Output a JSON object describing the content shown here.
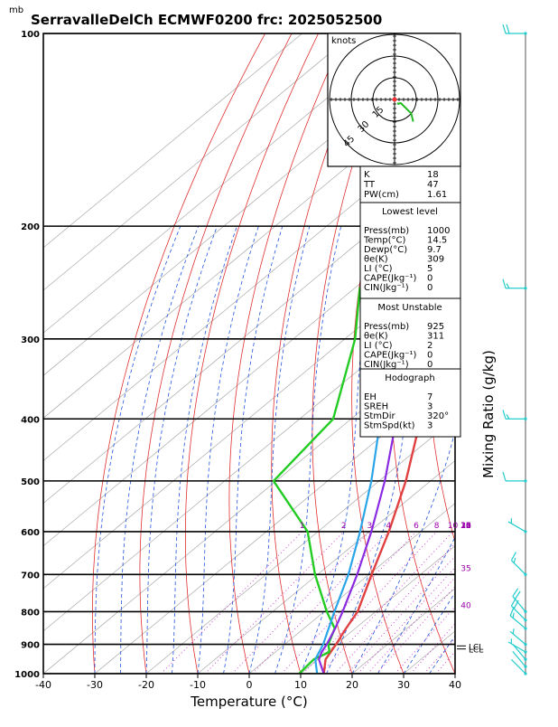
{
  "title": "SerravalleDelCh ECMWF0200  frc: 2025052500",
  "pressure_unit": "mb",
  "hodograph": {
    "unit_label": "knots",
    "ring_labels": [
      "15",
      "30",
      "45"
    ]
  },
  "indices": {
    "top": [
      {
        "label": "K",
        "value": "18"
      },
      {
        "label": "TT",
        "value": "47"
      },
      {
        "label": "PW(cm)",
        "value": "1.61"
      }
    ],
    "lowest_level": {
      "header": "Lowest level",
      "rows": [
        {
          "label": "Press(mb)",
          "value": "1000"
        },
        {
          "label": "Temp(°C)",
          "value": "14.5"
        },
        {
          "label": "Dewp(°C)",
          "value": "9.7"
        },
        {
          "label": "θe(K)",
          "value": "309"
        },
        {
          "label": "LI (°C)",
          "value": "5"
        },
        {
          "label": "CAPE(Jkg⁻¹)",
          "value": "0"
        },
        {
          "label": "CIN(Jkg⁻¹)",
          "value": "0"
        }
      ]
    },
    "most_unstable": {
      "header": "Most Unstable",
      "rows": [
        {
          "label": "Press(mb)",
          "value": "925"
        },
        {
          "label": "θe(K)",
          "value": "311"
        },
        {
          "label": "LI (°C)",
          "value": "2"
        },
        {
          "label": "CAPE(Jkg⁻¹)",
          "value": "0"
        },
        {
          "label": "CIN(Jkg⁻¹)",
          "value": "0"
        }
      ]
    },
    "hodograph_box": {
      "header": "Hodograph",
      "rows": [
        {
          "label": "EH",
          "value": "7"
        },
        {
          "label": "SREH",
          "value": "3"
        },
        {
          "label": "StmDir",
          "value": "320°"
        },
        {
          "label": "StmSpd(kt)",
          "value": "3"
        }
      ]
    }
  },
  "lcl_label": "LCL",
  "chart_data": {
    "type": "line",
    "subtype": "skew-t log-p",
    "xlabel": "Temperature (°C)",
    "ylabel": "",
    "right_label": "Mixing Ratio (g/kg)",
    "xlim": [
      -40,
      40
    ],
    "ylim": [
      1000,
      100
    ],
    "x_ticks": [
      -40,
      -30,
      -20,
      -10,
      0,
      10,
      20,
      30,
      40
    ],
    "pressure_levels": [
      100,
      200,
      300,
      400,
      500,
      600,
      700,
      800,
      900,
      1000
    ],
    "mixing_ratio_labels": [
      "1",
      "2",
      "3",
      "4",
      "6",
      "8",
      "10",
      "12",
      "14",
      "16",
      "18",
      "20",
      "25",
      "30",
      "35",
      "40"
    ],
    "colors": {
      "temperature": "#e04040",
      "dewpoint": "#22cc22",
      "parcel": "#8a2be2",
      "virtual_temp": "#2aa5e8",
      "dry_adiabat": "#e03030",
      "moist_adiabat": "#2255dd",
      "mixing_ratio": "#cc33cc",
      "isotherm": "#aaaaaa",
      "wind": "#22cccc"
    },
    "series": [
      {
        "name": "temperature",
        "points": [
          [
            1000,
            14.5
          ],
          [
            950,
            11.5
          ],
          [
            900,
            10
          ],
          [
            850,
            8.2
          ],
          [
            800,
            6.5
          ],
          [
            700,
            0.5
          ],
          [
            600,
            -6.2
          ],
          [
            500,
            -14.8
          ],
          [
            400,
            -26.5
          ],
          [
            300,
            -42
          ],
          [
            250,
            -51
          ],
          [
            200,
            -53
          ],
          [
            150,
            -54
          ],
          [
            100,
            -55
          ]
        ]
      },
      {
        "name": "dewpoint",
        "points": [
          [
            1000,
            9.7
          ],
          [
            950,
            9.2
          ],
          [
            925,
            10.5
          ],
          [
            900,
            8.5
          ],
          [
            850,
            6
          ],
          [
            800,
            0.5
          ],
          [
            700,
            -10.5
          ],
          [
            600,
            -22
          ],
          [
            500,
            -40.5
          ],
          [
            400,
            -43.5
          ],
          [
            300,
            -58
          ],
          [
            250,
            -69
          ],
          [
            200,
            -72
          ],
          [
            100,
            -81
          ]
        ]
      },
      {
        "name": "parcel",
        "points": [
          [
            1000,
            14.5
          ],
          [
            950,
            10.2
          ],
          [
            925,
            9
          ],
          [
            900,
            8.2
          ],
          [
            850,
            6.1
          ],
          [
            800,
            3.6
          ],
          [
            700,
            -2.3
          ],
          [
            600,
            -9.6
          ],
          [
            500,
            -18.9
          ],
          [
            400,
            -31.2
          ],
          [
            300,
            -47.2
          ],
          [
            200,
            -68
          ],
          [
            100,
            -92
          ]
        ]
      },
      {
        "name": "virtual_temp",
        "points": [
          [
            1000,
            13.2
          ],
          [
            950,
            9.5
          ],
          [
            900,
            7.5
          ],
          [
            800,
            2
          ],
          [
            700,
            -4
          ],
          [
            600,
            -11.8
          ],
          [
            500,
            -21.5
          ],
          [
            400,
            -34.3
          ],
          [
            300,
            -51
          ],
          [
            200,
            -73
          ],
          [
            100,
            -96
          ]
        ]
      }
    ],
    "winds": [
      {
        "pressure": 1000,
        "dir": 315,
        "speed": 3
      },
      {
        "pressure": 975,
        "dir": 320,
        "speed": 3
      },
      {
        "pressure": 950,
        "dir": 320,
        "speed": 4
      },
      {
        "pressure": 925,
        "dir": 300,
        "speed": 5
      },
      {
        "pressure": 900,
        "dir": 310,
        "speed": 5
      },
      {
        "pressure": 850,
        "dir": 310,
        "speed": 15
      },
      {
        "pressure": 825,
        "dir": 315,
        "speed": 20
      },
      {
        "pressure": 800,
        "dir": 320,
        "speed": 20
      },
      {
        "pressure": 700,
        "dir": 315,
        "speed": 15
      },
      {
        "pressure": 600,
        "dir": 300,
        "speed": 5
      },
      {
        "pressure": 500,
        "dir": 270,
        "speed": 10
      },
      {
        "pressure": 400,
        "dir": 270,
        "speed": 15
      },
      {
        "pressure": 250,
        "dir": 270,
        "speed": 15
      },
      {
        "pressure": 100,
        "dir": 270,
        "speed": 20
      }
    ],
    "hodograph_points": [
      [
        315,
        3
      ],
      [
        320,
        4
      ],
      [
        300,
        5
      ],
      [
        310,
        15
      ],
      [
        320,
        20
      ]
    ],
    "lcl_pressure": [
      905,
      915
    ]
  }
}
